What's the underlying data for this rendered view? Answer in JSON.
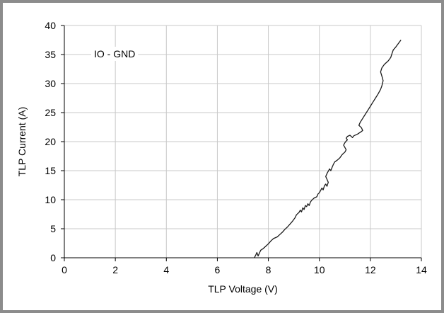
{
  "chart_data": {
    "type": "line",
    "title": "",
    "xlabel": "TLP Voltage (V)",
    "ylabel": "TLP Current (A)",
    "xlim": [
      0,
      14
    ],
    "ylim": [
      0,
      40
    ],
    "xticks": [
      0,
      2,
      4,
      6,
      8,
      10,
      12,
      14
    ],
    "yticks": [
      0,
      5,
      10,
      15,
      20,
      25,
      30,
      35,
      40
    ],
    "grid": true,
    "legend": "none",
    "annotation": "IO - GND",
    "line_color": "#1a1a1a",
    "grid_color": "#c8c8c8",
    "series": [
      {
        "x": [
          7.45,
          7.5,
          7.55,
          7.6,
          7.65,
          7.7,
          7.8,
          7.9,
          8.0,
          8.1,
          8.2,
          8.35,
          8.45,
          8.55,
          8.65,
          8.75,
          8.85,
          8.95,
          9.05,
          9.1,
          9.2,
          9.25,
          9.3,
          9.35,
          9.4,
          9.45,
          9.5,
          9.55,
          9.6,
          9.65,
          9.7,
          9.8,
          9.9,
          9.95,
          10.0,
          10.05,
          10.1,
          10.15,
          10.2,
          10.25,
          10.3,
          10.35,
          10.3,
          10.25,
          10.3,
          10.35,
          10.4,
          10.45,
          10.5,
          10.55,
          10.6,
          10.7,
          10.8,
          10.9,
          11.0,
          11.05,
          11.0,
          10.95,
          11.0,
          11.05,
          11.1,
          11.05,
          11.1,
          11.2,
          11.3,
          11.35,
          11.5,
          11.6,
          11.7,
          11.65,
          11.55,
          11.6,
          11.7,
          11.8,
          11.9,
          12.0,
          12.1,
          12.2,
          12.3,
          12.4,
          12.45,
          12.5,
          12.45,
          12.4,
          12.45,
          12.55,
          12.7,
          12.8,
          12.85,
          12.9,
          13.0,
          13.1,
          13.2
        ],
        "y": [
          0,
          0.4,
          0.9,
          0.3,
          0.8,
          1.3,
          1.6,
          2.0,
          2.4,
          2.9,
          3.3,
          3.6,
          4.0,
          4.4,
          4.9,
          5.3,
          5.8,
          6.3,
          6.9,
          7.4,
          7.8,
          8.2,
          7.9,
          8.6,
          8.3,
          9.0,
          8.8,
          9.3,
          9.0,
          9.6,
          9.9,
          10.3,
          10.5,
          11.0,
          11.2,
          11.6,
          12.0,
          11.7,
          12.4,
          12.7,
          12.3,
          13.0,
          13.5,
          14.0,
          14.5,
          14.9,
          15.3,
          15.0,
          15.6,
          16.1,
          16.5,
          16.8,
          17.2,
          17.8,
          18.2,
          18.6,
          19.0,
          19.4,
          19.8,
          20.1,
          20.3,
          20.6,
          20.9,
          21.1,
          20.7,
          21.0,
          21.3,
          21.6,
          21.9,
          22.4,
          22.8,
          23.3,
          24.0,
          24.7,
          25.4,
          26.1,
          26.8,
          27.5,
          28.2,
          29.0,
          29.6,
          30.5,
          31.3,
          32.0,
          32.7,
          33.3,
          33.9,
          34.5,
          35.2,
          35.8,
          36.3,
          36.9,
          37.5
        ]
      }
    ]
  }
}
